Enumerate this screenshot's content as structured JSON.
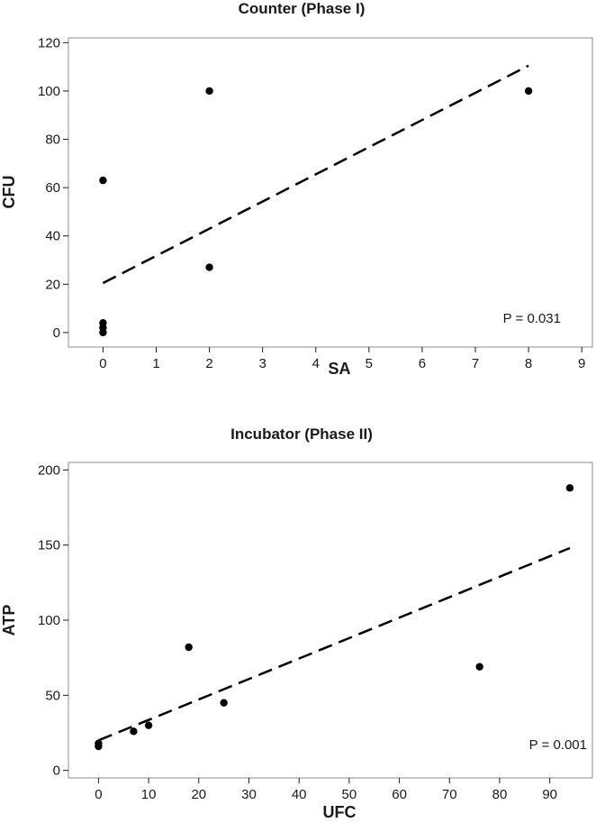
{
  "chart_data": [
    {
      "type": "scatter",
      "title": "Counter (Phase I)",
      "xlabel": "SA",
      "ylabel": "CFU",
      "xlim": [
        -0.65,
        9.2
      ],
      "ylim": [
        -6,
        122
      ],
      "xticks": [
        0,
        1,
        2,
        3,
        4,
        5,
        6,
        7,
        8,
        9
      ],
      "yticks": [
        0,
        20,
        40,
        60,
        80,
        100,
        120
      ],
      "points": [
        {
          "x": 0,
          "y": 63
        },
        {
          "x": 0,
          "y": 4
        },
        {
          "x": 0,
          "y": 2
        },
        {
          "x": 0,
          "y": 0
        },
        {
          "x": 2,
          "y": 100
        },
        {
          "x": 2,
          "y": 27
        },
        {
          "x": 8,
          "y": 100
        }
      ],
      "fit_line": {
        "x": [
          0,
          8
        ],
        "y": [
          20.5,
          110.5
        ],
        "style": "dashed"
      },
      "annotation": "P = 0.031",
      "grid": false
    },
    {
      "type": "scatter",
      "title": "Incubator (Phase II)",
      "xlabel": "UFC",
      "ylabel": "ATP",
      "xlim": [
        -6,
        98.5
      ],
      "ylim": [
        -5,
        205
      ],
      "xticks": [
        0,
        10,
        20,
        30,
        40,
        50,
        60,
        70,
        80,
        90
      ],
      "yticks": [
        0,
        50,
        100,
        150,
        200
      ],
      "points": [
        {
          "x": 0,
          "y": 18
        },
        {
          "x": 0,
          "y": 16
        },
        {
          "x": 7,
          "y": 26
        },
        {
          "x": 10,
          "y": 30
        },
        {
          "x": 18,
          "y": 82
        },
        {
          "x": 25,
          "y": 45
        },
        {
          "x": 76,
          "y": 69
        },
        {
          "x": 94,
          "y": 188
        }
      ],
      "fit_line": {
        "x": [
          0,
          94
        ],
        "y": [
          20,
          148
        ],
        "style": "dashed"
      },
      "annotation": "P = 0.001",
      "grid": false
    }
  ]
}
